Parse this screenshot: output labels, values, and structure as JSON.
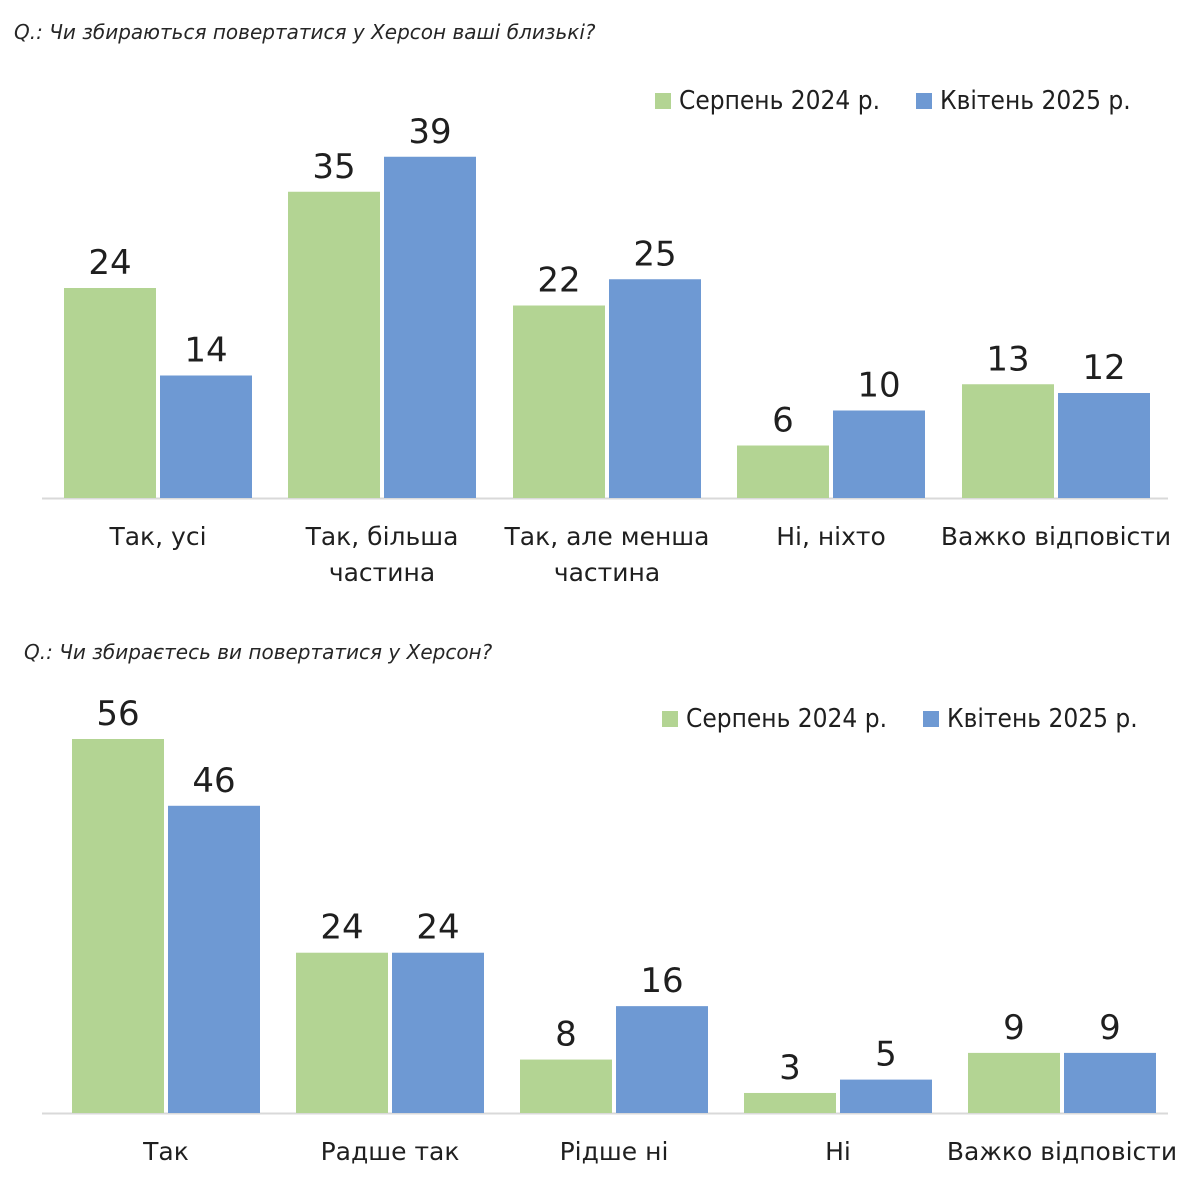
{
  "colors": {
    "series_1": "#b3d493",
    "series_2": "#6e99d3",
    "axis": "#d9d9d9",
    "text": "#1f1f1f"
  },
  "chart_data": [
    {
      "type": "bar",
      "title": "Q.: Чи збираються повертатися у Херсон ваші близькі?",
      "categories": [
        "Так, усі",
        "Так, більша частина",
        "Так, але менша частина",
        "Ні, ніхто",
        "Важко відповісти"
      ],
      "category_lines": [
        [
          "Так, усі"
        ],
        [
          "Так, більша",
          "частина"
        ],
        [
          "Так, але менша",
          "частина"
        ],
        [
          "Ні, ніхто"
        ],
        [
          "Важко відповісти"
        ]
      ],
      "series": [
        {
          "name": "Серпень 2024 р.",
          "values": [
            24,
            35,
            22,
            6,
            13
          ]
        },
        {
          "name": "Квітень 2025 р.",
          "values": [
            14,
            39,
            25,
            10,
            12
          ]
        }
      ],
      "legend": "top-right",
      "xlabel": "",
      "ylabel": "",
      "ylim": [
        0,
        40
      ],
      "grid": false
    },
    {
      "type": "bar",
      "title": "Q.: Чи збираєтесь ви повертатися у Херсон?",
      "categories": [
        "Так",
        "Радше так",
        "Рідше ні",
        "Ні",
        "Важко відповісти"
      ],
      "category_lines": [
        [
          "Так"
        ],
        [
          "Радше так"
        ],
        [
          "Рідше ні"
        ],
        [
          "Ні"
        ],
        [
          "Важко відповісти"
        ]
      ],
      "series": [
        {
          "name": "Серпень 2024 р.",
          "values": [
            56,
            24,
            8,
            3,
            9
          ]
        },
        {
          "name": "Квітень 2025 р.",
          "values": [
            46,
            24,
            16,
            5,
            9
          ]
        }
      ],
      "legend": "top-right",
      "xlabel": "",
      "ylabel": "",
      "ylim": [
        0,
        56
      ],
      "grid": false
    }
  ]
}
